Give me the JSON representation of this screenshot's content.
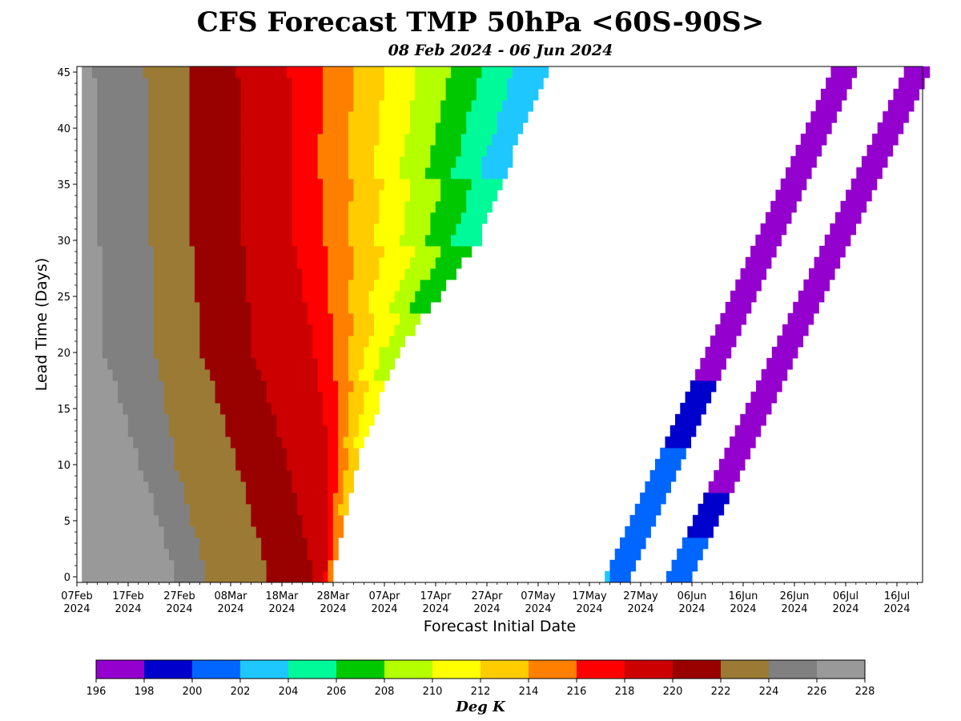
{
  "chart_data": {
    "type": "heatmap",
    "title": "CFS Forecast TMP 50hPa <60S-90S>",
    "subtitle": "08 Feb 2024 - 06 Jun 2024",
    "xlabel": "Forecast Initial Date",
    "ylabel": "Lead Time (Days)",
    "x_range": [
      "2024-02-07",
      "2024-07-21"
    ],
    "y_range": [
      -0.5,
      45.5
    ],
    "x_tick_labels": [
      {
        "day": "07Feb",
        "year": "2024"
      },
      {
        "day": "17Feb",
        "year": "2024"
      },
      {
        "day": "27Feb",
        "year": "2024"
      },
      {
        "day": "08Mar",
        "year": "2024"
      },
      {
        "day": "18Mar",
        "year": "2024"
      },
      {
        "day": "28Mar",
        "year": "2024"
      },
      {
        "day": "07Apr",
        "year": "2024"
      },
      {
        "day": "17Apr",
        "year": "2024"
      },
      {
        "day": "27Apr",
        "year": "2024"
      },
      {
        "day": "07May",
        "year": "2024"
      },
      {
        "day": "17May",
        "year": "2024"
      },
      {
        "day": "27May",
        "year": "2024"
      },
      {
        "day": "06Jun",
        "year": "2024"
      },
      {
        "day": "16Jun",
        "year": "2024"
      },
      {
        "day": "26Jun",
        "year": "2024"
      },
      {
        "day": "06Jul",
        "year": "2024"
      },
      {
        "day": "16Jul",
        "year": "2024"
      }
    ],
    "y_ticks": [
      0,
      5,
      10,
      15,
      20,
      25,
      30,
      35,
      40,
      45
    ],
    "colorbar": {
      "label": "Deg K",
      "ticks": [
        "196",
        "198",
        "200",
        "202",
        "204",
        "206",
        "208",
        "210",
        "212",
        "214",
        "216",
        "218",
        "220",
        "222",
        "224",
        "226",
        "228"
      ],
      "colors": [
        "#9400cd",
        "#0000cd",
        "#0066ff",
        "#1ec8ff",
        "#00fa9a",
        "#00c800",
        "#b4ff00",
        "#ffff00",
        "#ffcc00",
        "#ff8000",
        "#ff0000",
        "#cc0000",
        "#990000",
        "#9a7a34",
        "#808080",
        "#999999"
      ]
    },
    "initial_date_band_boundaries": {
      "description": "Approximate forecast-initial dates where temperature crosses each contour (Deg K) as a function of lead time",
      "lead_days": [
        0,
        10,
        20,
        30,
        45
      ],
      "band_226_224": [
        "2024-02-26",
        "2024-02-19",
        "2024-02-12",
        "2024-02-11",
        "2024-02-10"
      ],
      "band_224_222": [
        "2024-03-03",
        "2024-02-26",
        "2024-02-22",
        "2024-02-21",
        "2024-02-20"
      ],
      "band_222_220": [
        "2024-03-15",
        "2024-03-09",
        "2024-03-02",
        "2024-02-29",
        "2024-02-29"
      ],
      "band_220_218": [
        "2024-03-24",
        "2024-03-19",
        "2024-03-12",
        "2024-03-10",
        "2024-03-09"
      ],
      "band_218_216": [
        "2024-03-26",
        "2024-03-27",
        "2024-03-24",
        "2024-03-20",
        "2024-03-19"
      ],
      "forecast_edge": [
        "2024-03-27",
        "2024-04-01",
        "2024-04-09",
        "2024-04-25",
        "2024-05-08"
      ],
      "late_may_june_bands": "Lowest temperatures (196-202 K) appear in diagonal bands starting near 2024-05-20 and 2024-06-01 at lead 0, extending to 2024-07-06 and 2024-07-20 at lead 45"
    }
  }
}
